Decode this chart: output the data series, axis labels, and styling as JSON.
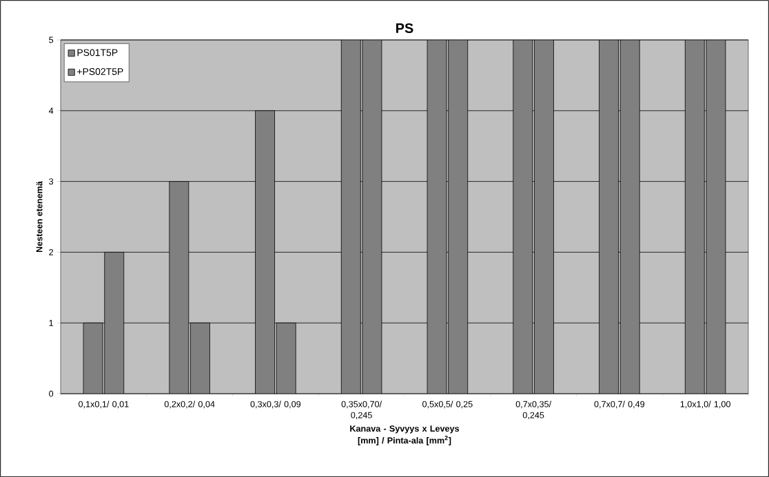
{
  "chart_data": {
    "type": "bar",
    "title": "PS",
    "categories": [
      "0,1x0,1/ 0,01",
      "0,2x0,2/ 0,04",
      "0,3x0,3/ 0,09",
      "0,35x0,70/ 0,245",
      "0,5x0,5/ 0,25",
      "0,7x0,35/ 0,245",
      "0,7x0,7/ 0,49",
      "1,0x1,0/ 1,00"
    ],
    "series": [
      {
        "name": "PS01T5P",
        "color": "#808080",
        "values": [
          1,
          3,
          4,
          5,
          5,
          5,
          5,
          5
        ]
      },
      {
        "name": "+PS02T5P",
        "color": "#808080",
        "values": [
          2,
          1,
          1,
          5,
          5,
          5,
          5,
          5
        ]
      }
    ],
    "xlabel": "Kanava - Syvyys x Leveys [mm] / Pinta-ala [mm$^{2}$]",
    "ylabel": "Nesteen etenemä",
    "ylim": [
      0,
      5
    ],
    "yticks": [
      0,
      1,
      2,
      3,
      4,
      5
    ],
    "grid": "y",
    "legend": "top left"
  }
}
